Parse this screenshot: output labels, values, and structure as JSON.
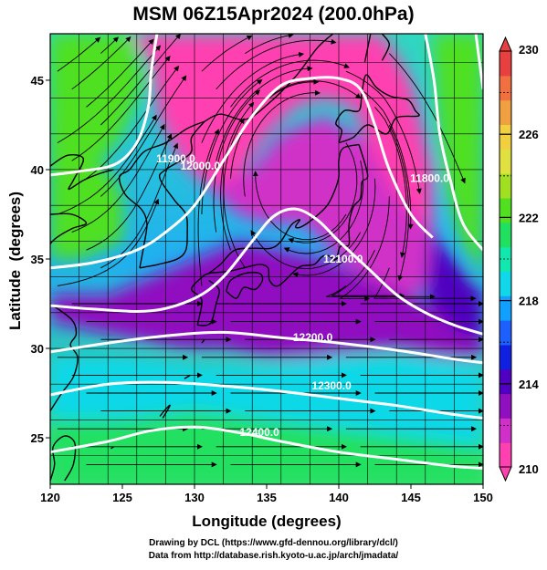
{
  "title": "MSM 06Z15Apr2024 (200.0hPa)",
  "chart_data": {
    "type": "heatmap",
    "xlabel": "Longitude (degrees)",
    "ylabel": "Latitude  (degrees)",
    "xlim": [
      120,
      150
    ],
    "ylim": [
      22.4,
      47.6
    ],
    "xticks": [
      "120",
      "125",
      "130",
      "135",
      "140",
      "145",
      "150"
    ],
    "yticks": [
      "25",
      "30",
      "35",
      "40",
      "45"
    ],
    "colorbar": {
      "range": [
        210,
        230
      ],
      "labels": [
        "210",
        "214",
        "218",
        "222",
        "226",
        "230"
      ],
      "colors": [
        "#ff40b0",
        "#d030c8",
        "#9010c0",
        "#5000c0",
        "#1020e0",
        "#1e60ff",
        "#10a0ff",
        "#10d8e8",
        "#10e8b0",
        "#20e060",
        "#50e020",
        "#a0e020",
        "#e0e040",
        "#f0d040",
        "#f0a040",
        "#f07040",
        "#e84040"
      ]
    },
    "contours": [
      {
        "label": "11900.0",
        "path": [
          [
            120,
            39.7
          ],
          [
            122,
            39.9
          ],
          [
            124.5,
            40.3
          ],
          [
            126,
            41.5
          ],
          [
            126.8,
            43.5
          ],
          [
            127,
            45.5
          ],
          [
            127.4,
            47.6
          ]
        ],
        "label_at": [
          128.7,
          40.4
        ]
      },
      {
        "label": "12000.0",
        "path": [
          [
            120,
            34.5
          ],
          [
            123,
            34.8
          ],
          [
            126,
            35.5
          ],
          [
            128,
            36.5
          ],
          [
            130,
            38
          ],
          [
            132,
            40.5
          ],
          [
            134,
            43
          ],
          [
            136,
            44.7
          ],
          [
            138,
            45.1
          ],
          [
            140,
            45.1
          ],
          [
            141.5,
            44.5
          ],
          [
            142.5,
            42.5
          ],
          [
            143.5,
            40
          ],
          [
            145,
            37.5
          ],
          [
            146.5,
            36.2
          ]
        ],
        "label_at": [
          130.4,
          40.0
        ]
      },
      {
        "label": "12100.0",
        "path": [
          [
            120,
            32.4
          ],
          [
            123,
            32.2
          ],
          [
            127,
            32.1
          ],
          [
            130,
            32.8
          ],
          [
            132,
            34
          ],
          [
            134,
            36
          ],
          [
            135.5,
            37.4
          ],
          [
            137,
            37.8
          ],
          [
            138.5,
            37.2
          ],
          [
            140,
            36
          ],
          [
            142,
            34.5
          ],
          [
            144,
            33
          ],
          [
            146,
            32
          ],
          [
            148,
            31.3
          ],
          [
            150,
            30.8
          ]
        ],
        "label_at": [
          140.3,
          34.8
        ]
      },
      {
        "label": "11800.0",
        "path": [
          [
            146,
            47.6
          ],
          [
            146.6,
            45
          ],
          [
            147,
            42
          ],
          [
            147.7,
            39.5
          ],
          [
            148.6,
            37
          ],
          [
            150,
            35.5
          ]
        ],
        "label_at": [
          146.3,
          39.3
        ]
      },
      {
        "label": "11900.0",
        "path": [
          [
            149.5,
            47.6
          ],
          [
            150,
            44.5
          ]
        ],
        "label_at": null
      },
      {
        "label": "12200.0",
        "path": [
          [
            120,
            29.8
          ],
          [
            124,
            30.3
          ],
          [
            128,
            30.7
          ],
          [
            132,
            30.9
          ],
          [
            136,
            30.6
          ],
          [
            140,
            30.3
          ],
          [
            144,
            29.9
          ],
          [
            148,
            29.4
          ],
          [
            150,
            29.2
          ]
        ],
        "label_at": [
          138.2,
          30.4
        ]
      },
      {
        "label": "12300.0",
        "path": [
          [
            120,
            27.4
          ],
          [
            124,
            28
          ],
          [
            128,
            28.1
          ],
          [
            132,
            27.9
          ],
          [
            136,
            27.6
          ],
          [
            140,
            27.2
          ],
          [
            144,
            26.8
          ],
          [
            148,
            26.3
          ],
          [
            150,
            26.1
          ]
        ],
        "label_at": [
          139.5,
          27.7
        ]
      },
      {
        "label": "12400.0",
        "path": [
          [
            120,
            24.2
          ],
          [
            124,
            24.8
          ],
          [
            127,
            25.4
          ],
          [
            130,
            25.6
          ],
          [
            133,
            25.3
          ],
          [
            136,
            24.8
          ],
          [
            140,
            24.2
          ],
          [
            144,
            23.8
          ],
          [
            148,
            23.4
          ],
          [
            150,
            23.3
          ]
        ],
        "label_at": [
          134.5,
          25.1
        ]
      }
    ],
    "temperature_regions": [
      {
        "value": 210,
        "polygon": [
          [
            125.5,
            47.6
          ],
          [
            127,
            46
          ],
          [
            127.5,
            43
          ],
          [
            129,
            40.5
          ],
          [
            131,
            39
          ],
          [
            133,
            39.5
          ],
          [
            135,
            42
          ],
          [
            137,
            43.5
          ],
          [
            139,
            44
          ],
          [
            141,
            43.5
          ],
          [
            142,
            41.5
          ],
          [
            143,
            39
          ],
          [
            145,
            37.5
          ],
          [
            146.5,
            36.5
          ],
          [
            146.5,
            40
          ],
          [
            145,
            45
          ],
          [
            143,
            47.6
          ]
        ]
      },
      {
        "value": 211,
        "polygon": [
          [
            131,
            39
          ],
          [
            133,
            37.5
          ],
          [
            135,
            37
          ],
          [
            137.5,
            37
          ],
          [
            139,
            36
          ],
          [
            140,
            35
          ],
          [
            142,
            34
          ],
          [
            143,
            33
          ],
          [
            144.5,
            32.5
          ],
          [
            146,
            33.5
          ],
          [
            146.5,
            36.5
          ],
          [
            144,
            38.5
          ],
          [
            142,
            41.5
          ],
          [
            139,
            43
          ],
          [
            136,
            42
          ],
          [
            134,
            40
          ]
        ]
      },
      {
        "value": 213,
        "polygon": [
          [
            120,
            31.5
          ],
          [
            123,
            31
          ],
          [
            126,
            30.5
          ],
          [
            129,
            30
          ],
          [
            132,
            30
          ],
          [
            135,
            29.5
          ],
          [
            138,
            29.5
          ],
          [
            141,
            29.8
          ],
          [
            144,
            30
          ],
          [
            147,
            29.5
          ],
          [
            150,
            29.5
          ],
          [
            150,
            31.5
          ],
          [
            146,
            32.5
          ],
          [
            142,
            34
          ],
          [
            139,
            35
          ],
          [
            136,
            35.5
          ],
          [
            133,
            36
          ],
          [
            130,
            35
          ],
          [
            127,
            34
          ],
          [
            124,
            33
          ],
          [
            120,
            33
          ]
        ]
      },
      {
        "value": 214,
        "polygon": [
          [
            146.5,
            36.5
          ],
          [
            146,
            33
          ],
          [
            148,
            31
          ],
          [
            150,
            30.5
          ],
          [
            150,
            33
          ],
          [
            148,
            35
          ]
        ]
      },
      {
        "value": 219,
        "polygon": [
          [
            120,
            23
          ],
          [
            150,
            23
          ],
          [
            150,
            29
          ],
          [
            145,
            29.5
          ],
          [
            140,
            29.5
          ],
          [
            135,
            29
          ],
          [
            130,
            29
          ],
          [
            125,
            29.5
          ],
          [
            120,
            29.5
          ]
        ]
      },
      {
        "value": 221,
        "polygon": [
          [
            120,
            22.4
          ],
          [
            150,
            22.4
          ],
          [
            150,
            24.5
          ],
          [
            145,
            25
          ],
          [
            140,
            25.5
          ],
          [
            135,
            26
          ],
          [
            130,
            26.5
          ],
          [
            125,
            26
          ],
          [
            120,
            26
          ]
        ]
      },
      {
        "value": 222,
        "polygon": [
          [
            120,
            41
          ],
          [
            122,
            40.5
          ],
          [
            124,
            40
          ],
          [
            125,
            38.5
          ],
          [
            125,
            36
          ],
          [
            122,
            35
          ],
          [
            120,
            35
          ]
        ]
      },
      {
        "value": 223,
        "polygon": [
          [
            120,
            47.6
          ],
          [
            125.5,
            47.6
          ],
          [
            126.5,
            45
          ],
          [
            125,
            42
          ],
          [
            123,
            40
          ],
          [
            120,
            40
          ]
        ]
      },
      {
        "value": 222,
        "polygon": [
          [
            146.5,
            47.6
          ],
          [
            150,
            47.6
          ],
          [
            150,
            34
          ],
          [
            148.5,
            36
          ],
          [
            147.5,
            39
          ],
          [
            147,
            42
          ]
        ]
      }
    ]
  },
  "credits": {
    "line1": "Drawing by DCL (https://www.gfd-dennou.org/library/dcl/)",
    "line2": "Data from http://database.rish.kyoto-u.ac.jp/arch/jmadata/"
  }
}
